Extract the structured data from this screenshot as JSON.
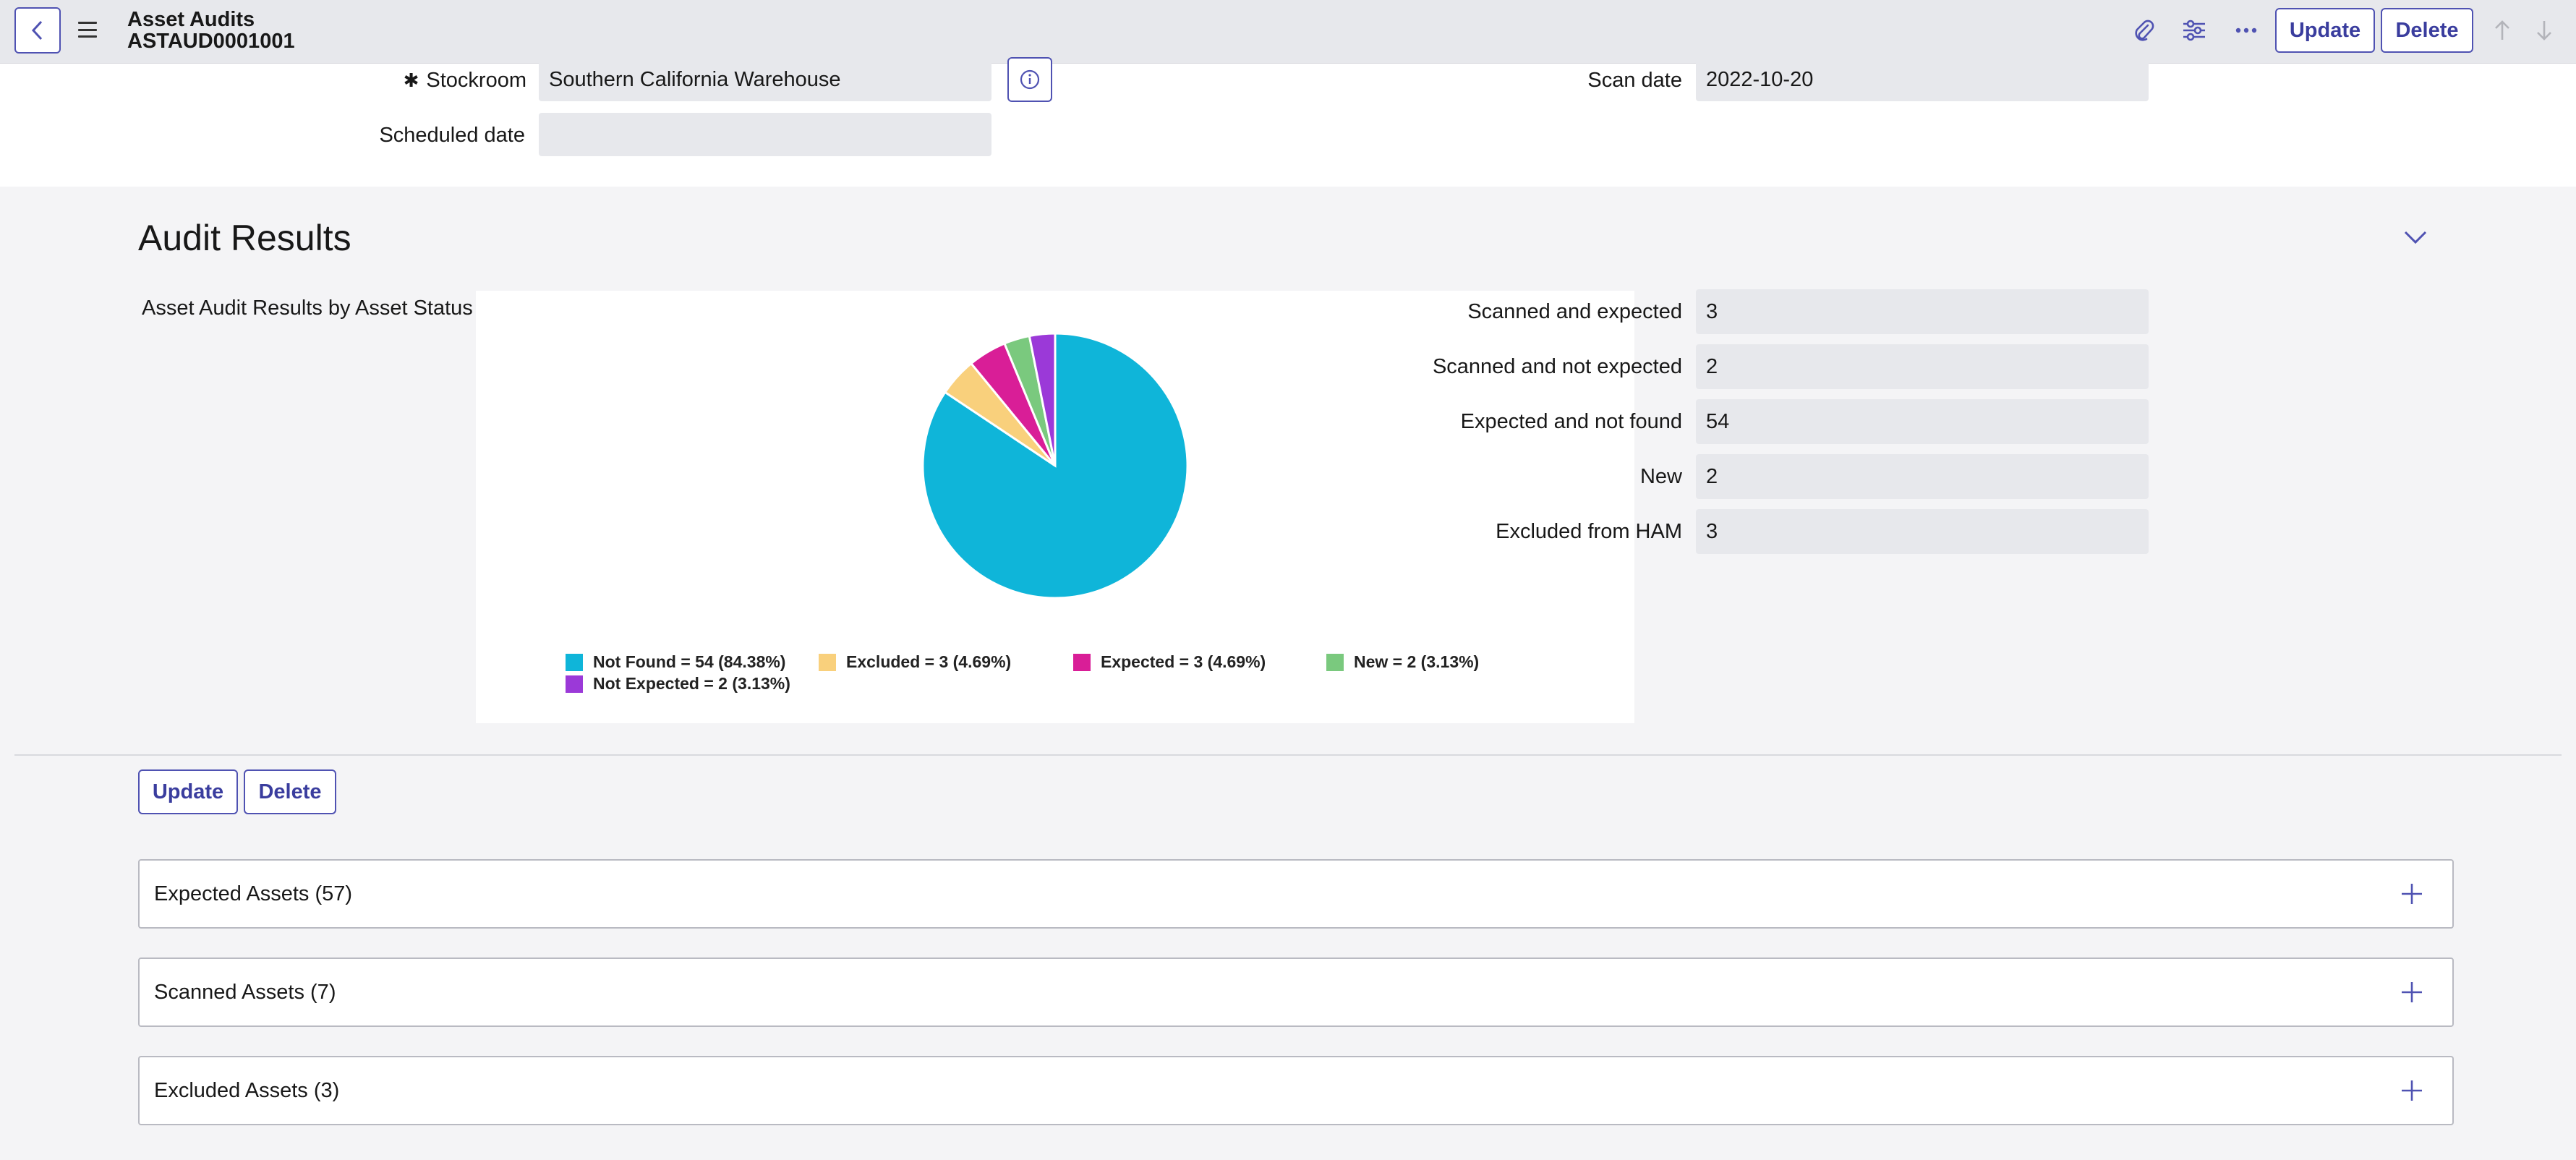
{
  "header": {
    "table_name": "Asset Audits",
    "record_number": "ASTAUD0001001",
    "update_label": "Update",
    "delete_label": "Delete"
  },
  "form": {
    "stockroom_label": "Stockroom",
    "stockroom_required_mark": "✱",
    "stockroom_value": "Southern California Warehouse",
    "scheduled_date_label": "Scheduled date",
    "scheduled_date_value": "",
    "scan_date_label": "Scan date",
    "scan_date_value": "2022-10-20"
  },
  "section": {
    "title": "Audit Results",
    "chart_label": "Asset Audit Results by Asset Status"
  },
  "results": [
    {
      "label": "Scanned and expected",
      "value": "3"
    },
    {
      "label": "Scanned and not expected",
      "value": "2"
    },
    {
      "label": "Expected and not found",
      "value": "54"
    },
    {
      "label": "New",
      "value": "2"
    },
    {
      "label": "Excluded from HAM",
      "value": "3"
    }
  ],
  "chart_data": {
    "type": "pie",
    "title": "",
    "slices": [
      {
        "label": "Not Found",
        "value": 54,
        "percent": 84.38,
        "color": "#0fb5d9",
        "legend": "Not Found = 54 (84.38%)"
      },
      {
        "label": "Excluded",
        "value": 3,
        "percent": 4.69,
        "color": "#f9d07c",
        "legend": "Excluded = 3 (4.69%)"
      },
      {
        "label": "Expected",
        "value": 3,
        "percent": 4.69,
        "color": "#d91e97",
        "legend": "Expected = 3 (4.69%)"
      },
      {
        "label": "New",
        "value": 2,
        "percent": 3.13,
        "color": "#7ac97e",
        "legend": "New = 2 (3.13%)"
      },
      {
        "label": "Not Expected",
        "value": 2,
        "percent": 3.13,
        "color": "#9b39d8",
        "legend": "Not Expected = 2 (3.13%)"
      }
    ],
    "legend_position": "bottom"
  },
  "bottom_actions": {
    "update_label": "Update",
    "delete_label": "Delete"
  },
  "related_lists": [
    {
      "label": "Expected Assets (57)"
    },
    {
      "label": "Scanned Assets (7)"
    },
    {
      "label": "Excluded Assets (3)"
    }
  ],
  "colors": {
    "accent": "#4f52b2",
    "field_bg": "#e7e8ec",
    "page_bg": "#f4f4f6"
  }
}
